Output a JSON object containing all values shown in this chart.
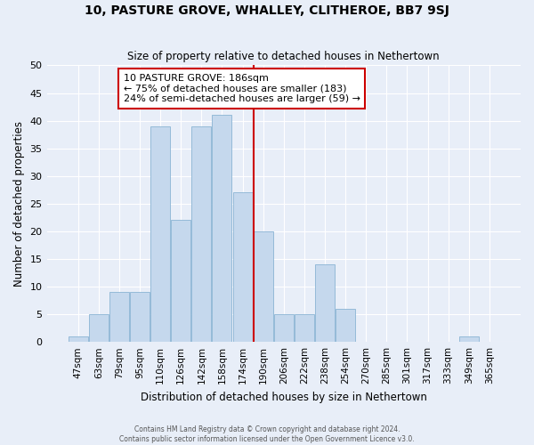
{
  "title": "10, PASTURE GROVE, WHALLEY, CLITHEROE, BB7 9SJ",
  "subtitle": "Size of property relative to detached houses in Nethertown",
  "xlabel": "Distribution of detached houses by size in Nethertown",
  "ylabel": "Number of detached properties",
  "bar_labels": [
    "47sqm",
    "63sqm",
    "79sqm",
    "95sqm",
    "110sqm",
    "126sqm",
    "142sqm",
    "158sqm",
    "174sqm",
    "190sqm",
    "206sqm",
    "222sqm",
    "238sqm",
    "254sqm",
    "270sqm",
    "285sqm",
    "301sqm",
    "317sqm",
    "333sqm",
    "349sqm",
    "365sqm"
  ],
  "bar_values": [
    1,
    5,
    9,
    9,
    39,
    22,
    39,
    41,
    27,
    20,
    5,
    5,
    14,
    6,
    0,
    0,
    0,
    0,
    0,
    1,
    0
  ],
  "bar_color": "#c5d8ed",
  "bar_edgecolor": "#8ab4d4",
  "bg_color": "#e8eef8",
  "grid_color": "#ffffff",
  "property_line_x": 8.55,
  "annotation_text": "10 PASTURE GROVE: 186sqm\n← 75% of detached houses are smaller (183)\n24% of semi-detached houses are larger (59) →",
  "annotation_box_color": "#ffffff",
  "annotation_box_edgecolor": "#cc0000",
  "vline_color": "#cc0000",
  "footer_line1": "Contains HM Land Registry data © Crown copyright and database right 2024.",
  "footer_line2": "Contains public sector information licensed under the Open Government Licence v3.0.",
  "ylim": [
    0,
    50
  ],
  "yticks": [
    0,
    5,
    10,
    15,
    20,
    25,
    30,
    35,
    40,
    45,
    50
  ]
}
